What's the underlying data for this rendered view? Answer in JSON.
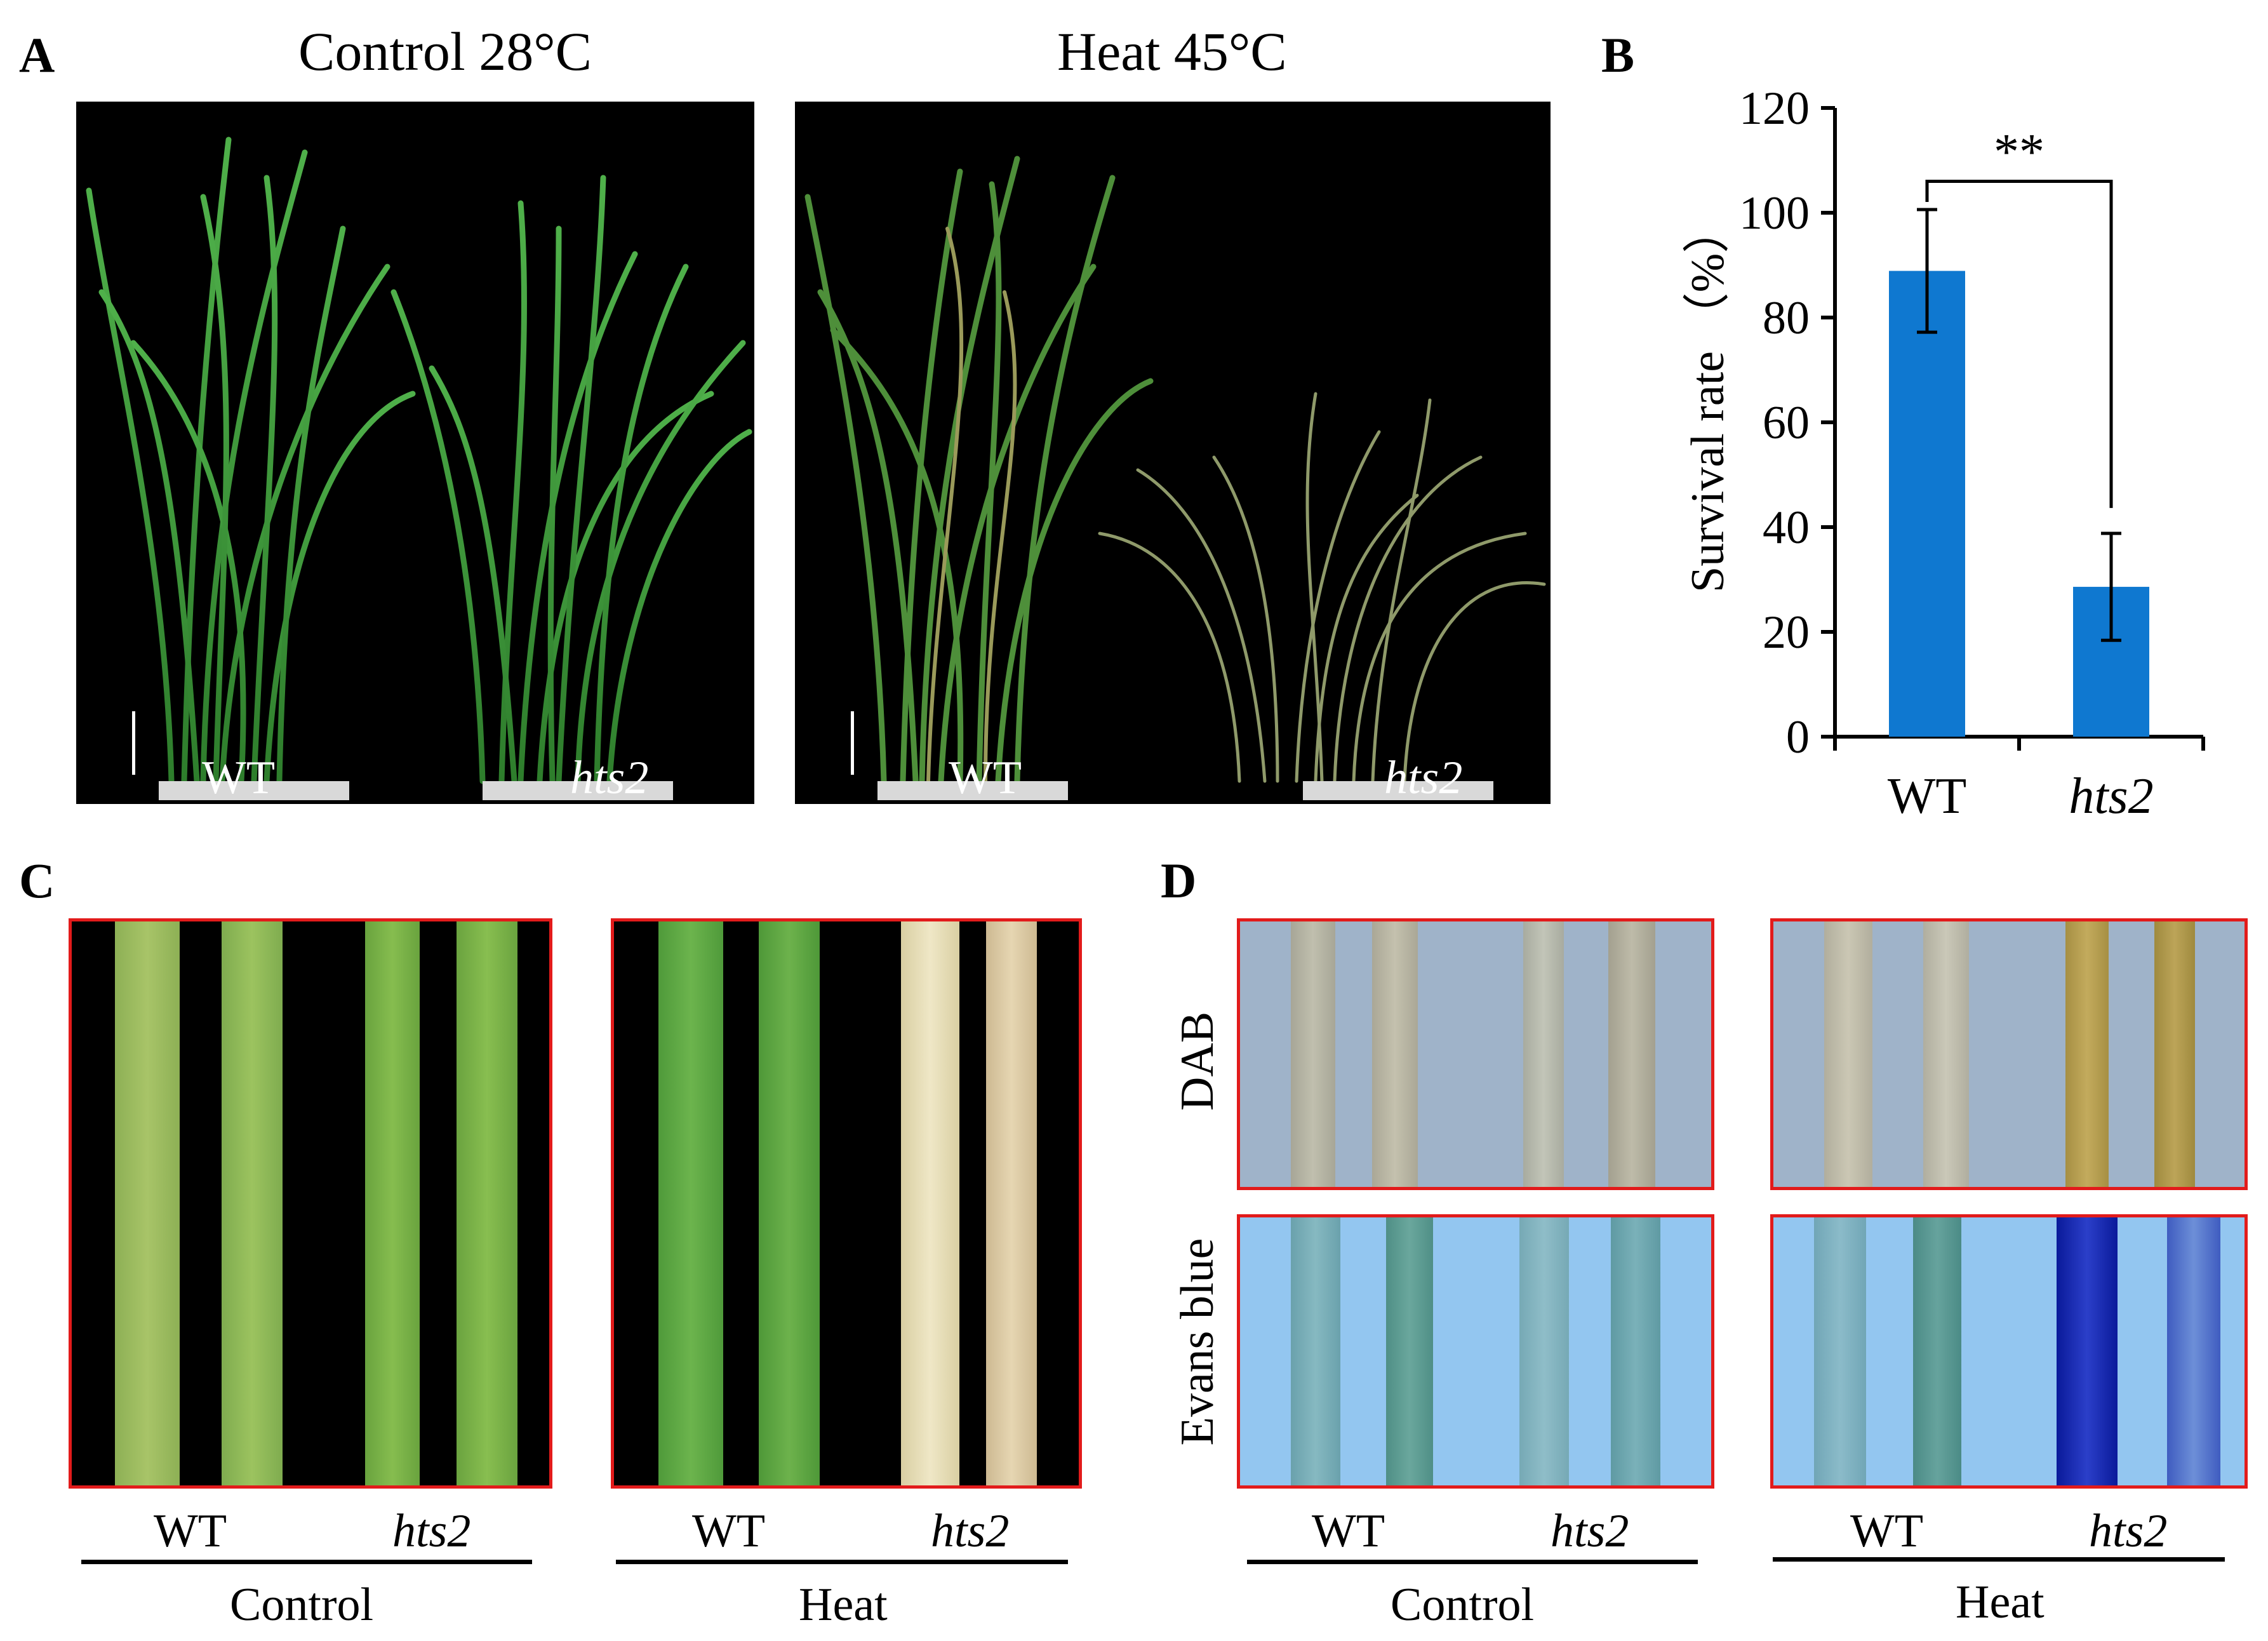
{
  "panelA": {
    "letter": "A",
    "control_title": "Control 28°C",
    "heat_title": "Heat 45°C",
    "wt_label": "WT",
    "mutant_label": "hts2"
  },
  "panelB": {
    "letter": "B"
  },
  "panelC": {
    "letter": "C",
    "wt_label": "WT",
    "mutant_label": "hts2",
    "control_label": "Control",
    "heat_label": "Heat"
  },
  "panelD": {
    "letter": "D",
    "row1_label": "DAB",
    "row2_label": "Evans blue",
    "wt_label": "WT",
    "mutant_label": "hts2",
    "control_label": "Control",
    "heat_label": "Heat"
  },
  "chart_data": {
    "type": "bar",
    "categories": [
      "WT",
      "hts2"
    ],
    "values": [
      88.9,
      28.6
    ],
    "errors": [
      11.7,
      10.2
    ],
    "ylabel": "Survival rate （%）",
    "ylim": [
      0,
      120
    ],
    "yticks": [
      0,
      20,
      40,
      60,
      80,
      100,
      120
    ],
    "significance": "**",
    "bar_color": "#0f78d0",
    "grid": false
  },
  "colors": {
    "border_red": "#e21b1b",
    "plant_green": "#3f9a3a",
    "dab_bg": "#9fb3c9",
    "evans_bg": "#93c6f0"
  }
}
